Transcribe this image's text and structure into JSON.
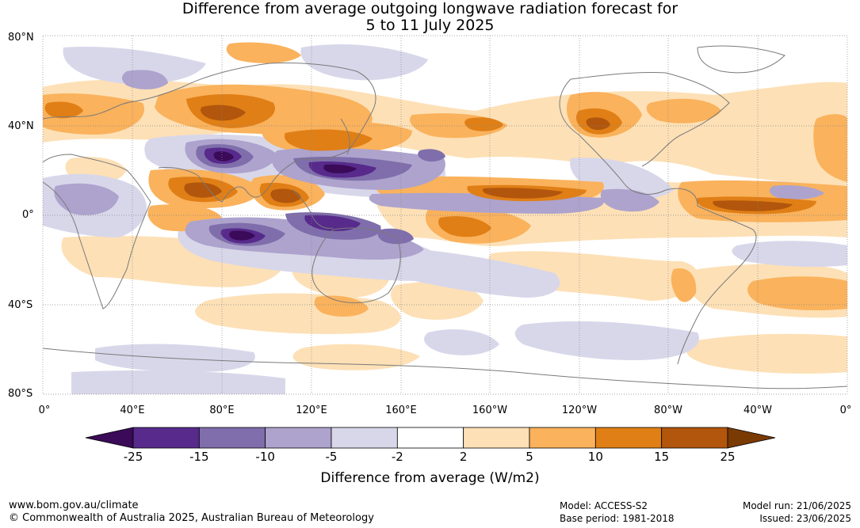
{
  "title_line1": "Difference from average outgoing longwave radiation forecast for",
  "title_line2": "5 to 11 July 2025",
  "lat_labels": [
    "80°N",
    "40°N",
    "0°",
    "40°S",
    "80°S"
  ],
  "lon_labels": [
    "0°",
    "40°E",
    "80°E",
    "120°E",
    "160°E",
    "160°W",
    "120°W",
    "80°W",
    "40°W",
    "0°"
  ],
  "colorbar": {
    "label": "Difference from average (W/m2)",
    "ticks": [
      "-25",
      "-15",
      "-10",
      "-5",
      "-2",
      "2",
      "5",
      "10",
      "15",
      "25"
    ],
    "colors": [
      "#3b0a58",
      "#572a8c",
      "#7f6eab",
      "#ada3cd",
      "#d8d7ea",
      "#ffffff",
      "#fde0b6",
      "#fab25c",
      "#e07f16",
      "#b1560c",
      "#7a3a04"
    ]
  },
  "footer": {
    "site": "www.bom.gov.au/climate",
    "copyright": "© Commonwealth of Australia 2025, Australian Bureau of Meteorology",
    "model": "Model: ACCESS-S2",
    "base_period": "Base period: 1981-2018",
    "model_run": "Model run: 21/06/2025",
    "issued": "Issued: 23/06/2025"
  }
}
